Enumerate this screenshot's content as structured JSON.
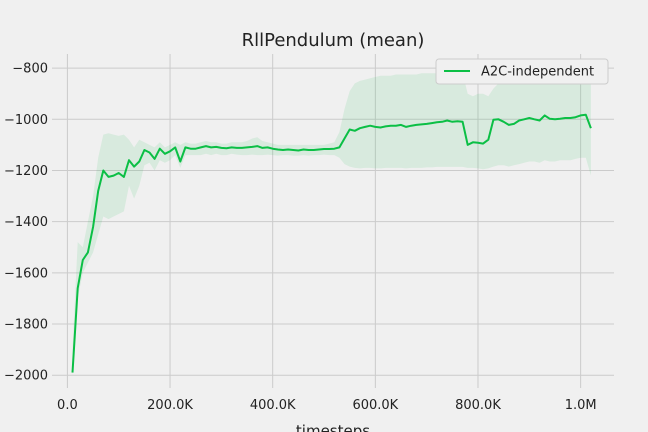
{
  "chart_data": {
    "type": "line",
    "title": "RllPendulum (mean)",
    "xlabel": "timesteps",
    "ylabel": "",
    "xlim": [
      -30000,
      1065000
    ],
    "ylim": [
      -2050,
      -745
    ],
    "grid": true,
    "legend_position": "top-right",
    "x_ticks": [
      0,
      200000,
      400000,
      600000,
      800000,
      1000000
    ],
    "x_tick_labels": [
      "0.0",
      "200.0K",
      "400.0K",
      "600.0K",
      "800.0K",
      "1.0M"
    ],
    "y_ticks": [
      -800,
      -1000,
      -1200,
      -1400,
      -1600,
      -1800,
      -2000
    ],
    "y_tick_labels": [
      "−800",
      "−1000",
      "−1200",
      "−1400",
      "−1600",
      "−1800",
      "−2000"
    ],
    "series": [
      {
        "name": "A2C-independent",
        "color": "#0bbf45",
        "band_color": "#0bbf45",
        "x": [
          10000,
          20000,
          30000,
          40000,
          50000,
          60000,
          70000,
          80000,
          90000,
          100000,
          110000,
          120000,
          130000,
          140000,
          150000,
          160000,
          170000,
          180000,
          190000,
          200000,
          210000,
          220000,
          230000,
          240000,
          250000,
          260000,
          270000,
          280000,
          290000,
          300000,
          310000,
          320000,
          330000,
          340000,
          350000,
          360000,
          370000,
          380000,
          390000,
          400000,
          410000,
          420000,
          430000,
          440000,
          450000,
          460000,
          470000,
          480000,
          490000,
          500000,
          510000,
          520000,
          530000,
          540000,
          550000,
          560000,
          570000,
          580000,
          590000,
          600000,
          610000,
          620000,
          630000,
          640000,
          650000,
          660000,
          670000,
          680000,
          690000,
          700000,
          710000,
          720000,
          730000,
          740000,
          750000,
          760000,
          770000,
          780000,
          790000,
          800000,
          810000,
          820000,
          830000,
          840000,
          850000,
          860000,
          870000,
          880000,
          890000,
          900000,
          910000,
          920000,
          930000,
          940000,
          950000,
          960000,
          970000,
          980000,
          990000,
          1000000,
          1010000,
          1020000
        ],
        "y": [
          -1990,
          -1660,
          -1550,
          -1520,
          -1420,
          -1280,
          -1200,
          -1225,
          -1220,
          -1210,
          -1225,
          -1160,
          -1185,
          -1165,
          -1120,
          -1130,
          -1155,
          -1115,
          -1135,
          -1125,
          -1110,
          -1165,
          -1110,
          -1115,
          -1115,
          -1110,
          -1105,
          -1110,
          -1108,
          -1112,
          -1113,
          -1110,
          -1112,
          -1112,
          -1110,
          -1108,
          -1105,
          -1112,
          -1110,
          -1115,
          -1118,
          -1120,
          -1118,
          -1120,
          -1122,
          -1118,
          -1120,
          -1120,
          -1118,
          -1116,
          -1116,
          -1115,
          -1110,
          -1075,
          -1040,
          -1045,
          -1035,
          -1030,
          -1025,
          -1030,
          -1032,
          -1028,
          -1025,
          -1025,
          -1022,
          -1030,
          -1025,
          -1022,
          -1020,
          -1018,
          -1015,
          -1012,
          -1010,
          -1005,
          -1010,
          -1008,
          -1010,
          -1100,
          -1090,
          -1092,
          -1095,
          -1080,
          -1002,
          -1000,
          -1010,
          -1022,
          -1018,
          -1005,
          -1000,
          -995,
          -1000,
          -1005,
          -985,
          -998,
          -1000,
          -998,
          -995,
          -995,
          -992,
          -985,
          -982,
          -1035
        ],
        "upper": [
          -1900,
          -1480,
          -1500,
          -1400,
          -1300,
          -1150,
          -1060,
          -1055,
          -1060,
          -1065,
          -1060,
          -1080,
          -1110,
          -1080,
          -1090,
          -1100,
          -1110,
          -1090,
          -1110,
          -1100,
          -1090,
          -1100,
          -1090,
          -1095,
          -1095,
          -1090,
          -1085,
          -1090,
          -1090,
          -1095,
          -1095,
          -1090,
          -1090,
          -1090,
          -1085,
          -1075,
          -1070,
          -1085,
          -1090,
          -1095,
          -1100,
          -1100,
          -1100,
          -1100,
          -1100,
          -1100,
          -1100,
          -1100,
          -1100,
          -1100,
          -1095,
          -1090,
          -1050,
          -960,
          -890,
          -860,
          -850,
          -845,
          -840,
          -835,
          -830,
          -830,
          -830,
          -825,
          -825,
          -825,
          -825,
          -825,
          -820,
          -820,
          -820,
          -820,
          -820,
          -818,
          -818,
          -818,
          -818,
          -900,
          -910,
          -900,
          -900,
          -910,
          -880,
          -860,
          -850,
          -840,
          -830,
          -820,
          -810,
          -810,
          -810,
          -810,
          -810,
          -810,
          -810,
          -810,
          -810,
          -810,
          -810,
          -810,
          -810,
          -830
        ],
        "lower": [
          -2000,
          -1700,
          -1600,
          -1560,
          -1520,
          -1450,
          -1380,
          -1390,
          -1380,
          -1370,
          -1360,
          -1260,
          -1310,
          -1260,
          -1180,
          -1170,
          -1200,
          -1160,
          -1170,
          -1160,
          -1140,
          -1190,
          -1140,
          -1140,
          -1140,
          -1140,
          -1135,
          -1140,
          -1135,
          -1140,
          -1140,
          -1135,
          -1138,
          -1140,
          -1140,
          -1138,
          -1140,
          -1140,
          -1138,
          -1140,
          -1142,
          -1140,
          -1140,
          -1142,
          -1142,
          -1140,
          -1142,
          -1140,
          -1140,
          -1138,
          -1140,
          -1140,
          -1150,
          -1175,
          -1185,
          -1190,
          -1192,
          -1190,
          -1190,
          -1192,
          -1192,
          -1190,
          -1190,
          -1190,
          -1190,
          -1192,
          -1190,
          -1190,
          -1190,
          -1188,
          -1188,
          -1186,
          -1186,
          -1186,
          -1186,
          -1186,
          -1186,
          -1190,
          -1190,
          -1192,
          -1195,
          -1192,
          -1185,
          -1180,
          -1180,
          -1185,
          -1180,
          -1175,
          -1170,
          -1165,
          -1165,
          -1170,
          -1160,
          -1165,
          -1165,
          -1160,
          -1160,
          -1160,
          -1155,
          -1150,
          -1150,
          -1220
        ]
      }
    ]
  }
}
